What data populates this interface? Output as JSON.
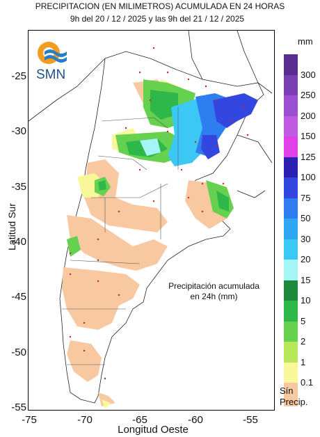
{
  "title_line1": "PRECIPITACION (EN MILIMETROS) ACUMULADA EN 24 HORAS",
  "title_line2": "9h del 20 / 12 / 2025  y las 9h del 21 / 12 / 2025",
  "logo_text": "SMN",
  "annotation": [
    "Precipitación acumulada",
    "en 24h (mm)"
  ],
  "y_axis_label": "Latitud Sur",
  "x_axis_label": "Longitud Oeste",
  "y_ticks": [
    "-25",
    "-30",
    "-35",
    "-40",
    "-45",
    "-50",
    "-55"
  ],
  "x_ticks": [
    "-75",
    "-70",
    "-65",
    "-60",
    "-55"
  ],
  "legend": {
    "unit": "mm",
    "no_precip_label": [
      "Sín",
      "Precip."
    ],
    "classes": [
      {
        "label": "300",
        "color": "#5a2d91"
      },
      {
        "label": "250",
        "color": "#7a3fb5"
      },
      {
        "label": "200",
        "color": "#9b4fd1"
      },
      {
        "label": "150",
        "color": "#c05ae0"
      },
      {
        "label": "125",
        "color": "#e040e8"
      },
      {
        "label": "100",
        "color": "#2a1fb0"
      },
      {
        "label": "75",
        "color": "#3346e0"
      },
      {
        "label": "50",
        "color": "#2f7ef0"
      },
      {
        "label": "30",
        "color": "#2fa6f2"
      },
      {
        "label": "20",
        "color": "#3cc8f5"
      },
      {
        "label": "15",
        "color": "#a6f5f5"
      },
      {
        "label": "10",
        "color": "#1c8a3a"
      },
      {
        "label": "5",
        "color": "#2fb84a"
      },
      {
        "label": "2",
        "color": "#66d04f"
      },
      {
        "label": "1",
        "color": "#b8e85a"
      },
      {
        "label": "0.1",
        "color": "#f8f89a"
      },
      {
        "label": "",
        "color": "#f8c8a0"
      }
    ]
  }
}
